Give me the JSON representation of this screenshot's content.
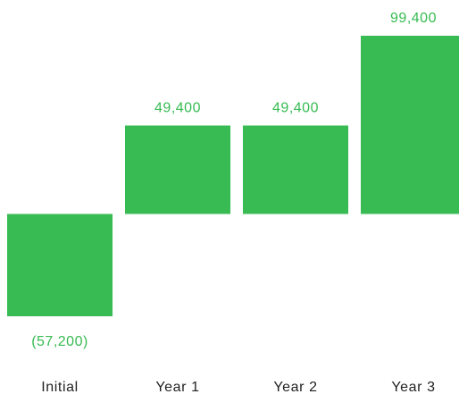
{
  "chart_data": {
    "type": "bar",
    "categories": [
      "Initial",
      "Year 1",
      "Year 2",
      "Year 3"
    ],
    "values": [
      -57200,
      49400,
      49400,
      99400
    ],
    "data_labels": [
      "(57,200)",
      "49,400",
      "49,400",
      "99,400"
    ],
    "ylim": [
      -57200,
      99400
    ],
    "grid": false,
    "legend": "none",
    "title": "",
    "xlabel": "",
    "ylabel": ""
  },
  "colors": {
    "bar": "#37bb52",
    "label": "#37bb52",
    "category_text": "#222222"
  }
}
